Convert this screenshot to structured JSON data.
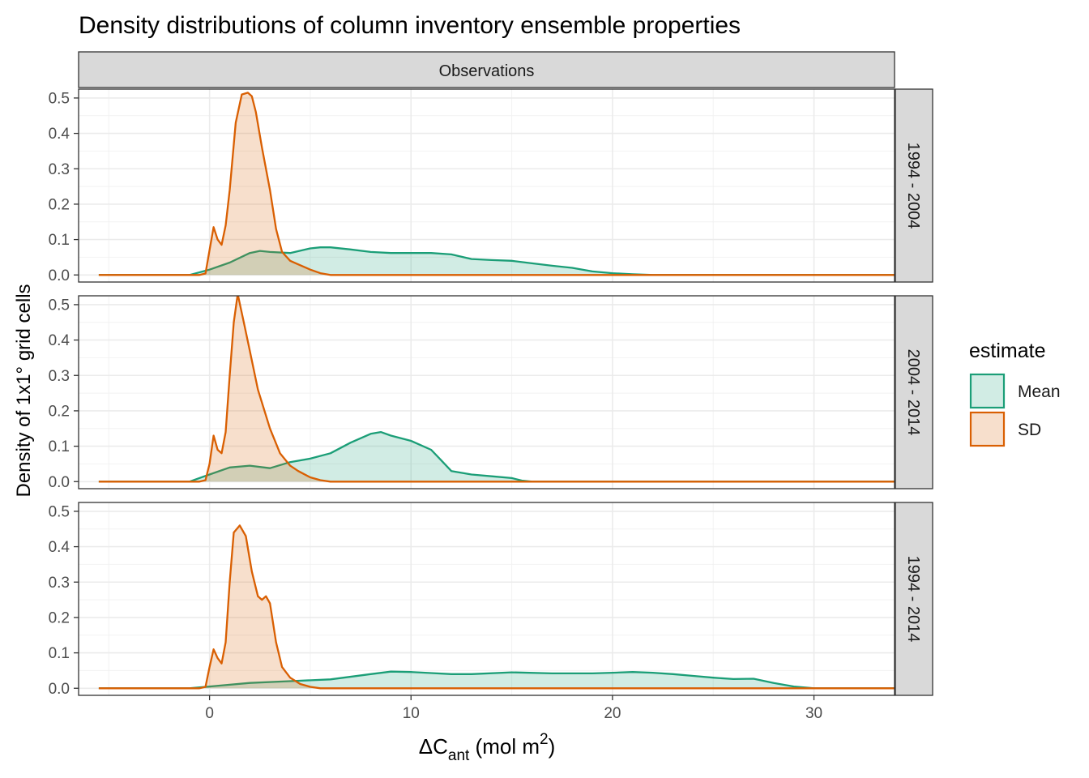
{
  "chart_data": {
    "type": "area",
    "title": "Density distributions of column inventory ensemble properties",
    "column_strip": "Observations",
    "ylabel": "Density of 1x1° grid cells",
    "xlabel": {
      "base": "ΔC",
      "sub": "ant",
      "unit_pre": " (mol m",
      "unit_sup": "2",
      "unit_post": ")"
    },
    "xlim": [
      -6.5,
      34
    ],
    "ylim": [
      -0.02,
      0.525
    ],
    "x_ticks": [
      0,
      10,
      20,
      30
    ],
    "y_ticks": [
      0.0,
      0.1,
      0.2,
      0.3,
      0.4,
      0.5
    ],
    "y_tick_labels": [
      "0.0",
      "0.1",
      "0.2",
      "0.3",
      "0.4",
      "0.5"
    ],
    "grid": true,
    "legend": {
      "title": "estimate",
      "position": "right",
      "items": [
        {
          "label": "Mean",
          "color": "#1b9e77"
        },
        {
          "label": "SD",
          "color": "#d95f02"
        }
      ]
    },
    "panels": [
      {
        "label": "1994 - 2004",
        "series": [
          {
            "name": "Mean",
            "color": "#1b9e77",
            "x": [
              -5.5,
              -1,
              0,
              1,
              2,
              2.5,
              3,
              4,
              5,
              5.5,
              6,
              7,
              8,
              9,
              10,
              11,
              12,
              13,
              14,
              15,
              16,
              17,
              18,
              19,
              20,
              21,
              22,
              25,
              30,
              34
            ],
            "y": [
              0,
              0,
              0.015,
              0.035,
              0.062,
              0.068,
              0.065,
              0.062,
              0.075,
              0.078,
              0.078,
              0.072,
              0.065,
              0.062,
              0.062,
              0.062,
              0.058,
              0.045,
              0.042,
              0.04,
              0.033,
              0.026,
              0.02,
              0.01,
              0.005,
              0.002,
              0,
              0,
              0,
              0
            ]
          },
          {
            "name": "SD",
            "color": "#d95f02",
            "x": [
              -5.5,
              -0.5,
              -0.2,
              0,
              0.2,
              0.4,
              0.6,
              0.8,
              1,
              1.3,
              1.6,
              1.9,
              2.1,
              2.3,
              2.6,
              3,
              3.3,
              3.6,
              4,
              4.4,
              5,
              5.5,
              6,
              34
            ],
            "y": [
              0,
              0,
              0.004,
              0.07,
              0.135,
              0.1,
              0.085,
              0.14,
              0.24,
              0.43,
              0.51,
              0.515,
              0.505,
              0.46,
              0.36,
              0.24,
              0.13,
              0.065,
              0.04,
              0.03,
              0.015,
              0.005,
              0,
              0
            ]
          }
        ]
      },
      {
        "label": "2004 - 2014",
        "series": [
          {
            "name": "Mean",
            "color": "#1b9e77",
            "x": [
              -5.5,
              -1,
              0,
              1,
              2,
              3,
              4,
              5,
              6,
              7,
              8,
              8.5,
              9,
              10,
              11,
              11.5,
              12,
              13,
              14,
              15,
              15.5,
              16,
              34
            ],
            "y": [
              0,
              0,
              0.02,
              0.04,
              0.045,
              0.038,
              0.055,
              0.065,
              0.08,
              0.11,
              0.135,
              0.14,
              0.13,
              0.115,
              0.09,
              0.06,
              0.03,
              0.02,
              0.015,
              0.01,
              0.003,
              0,
              0
            ]
          },
          {
            "name": "SD",
            "color": "#d95f02",
            "x": [
              -5.5,
              -0.5,
              -0.2,
              0,
              0.2,
              0.4,
              0.6,
              0.8,
              1,
              1.2,
              1.4,
              1.7,
              2,
              2.4,
              3,
              3.5,
              4,
              4.4,
              5,
              5.5,
              6,
              34
            ],
            "y": [
              0,
              0,
              0.004,
              0.05,
              0.13,
              0.09,
              0.08,
              0.14,
              0.3,
              0.45,
              0.53,
              0.45,
              0.37,
              0.26,
              0.15,
              0.08,
              0.045,
              0.03,
              0.012,
              0.004,
              0,
              0
            ]
          }
        ]
      },
      {
        "label": "1994 - 2014",
        "series": [
          {
            "name": "Mean",
            "color": "#1b9e77",
            "x": [
              -5.5,
              -1,
              0,
              2,
              4,
              6,
              8,
              9,
              10,
              11,
              12,
              13,
              15,
              17,
              19,
              20,
              21,
              22,
              23,
              24,
              25,
              26,
              27,
              28,
              29,
              30,
              34
            ],
            "y": [
              0,
              0,
              0.005,
              0.015,
              0.02,
              0.025,
              0.04,
              0.047,
              0.046,
              0.043,
              0.04,
              0.04,
              0.045,
              0.042,
              0.042,
              0.044,
              0.046,
              0.044,
              0.04,
              0.035,
              0.03,
              0.026,
              0.027,
              0.015,
              0.005,
              0,
              0
            ]
          },
          {
            "name": "SD",
            "color": "#d95f02",
            "x": [
              -5.5,
              -0.5,
              -0.2,
              0,
              0.2,
              0.4,
              0.6,
              0.8,
              1,
              1.2,
              1.5,
              1.8,
              2.1,
              2.4,
              2.6,
              2.8,
              3,
              3.3,
              3.6,
              4,
              4.5,
              5,
              5.5,
              34
            ],
            "y": [
              0,
              0,
              0.004,
              0.06,
              0.11,
              0.085,
              0.07,
              0.13,
              0.3,
              0.44,
              0.46,
              0.43,
              0.33,
              0.26,
              0.25,
              0.26,
              0.24,
              0.13,
              0.06,
              0.03,
              0.012,
              0.004,
              0,
              0
            ]
          }
        ]
      }
    ]
  }
}
